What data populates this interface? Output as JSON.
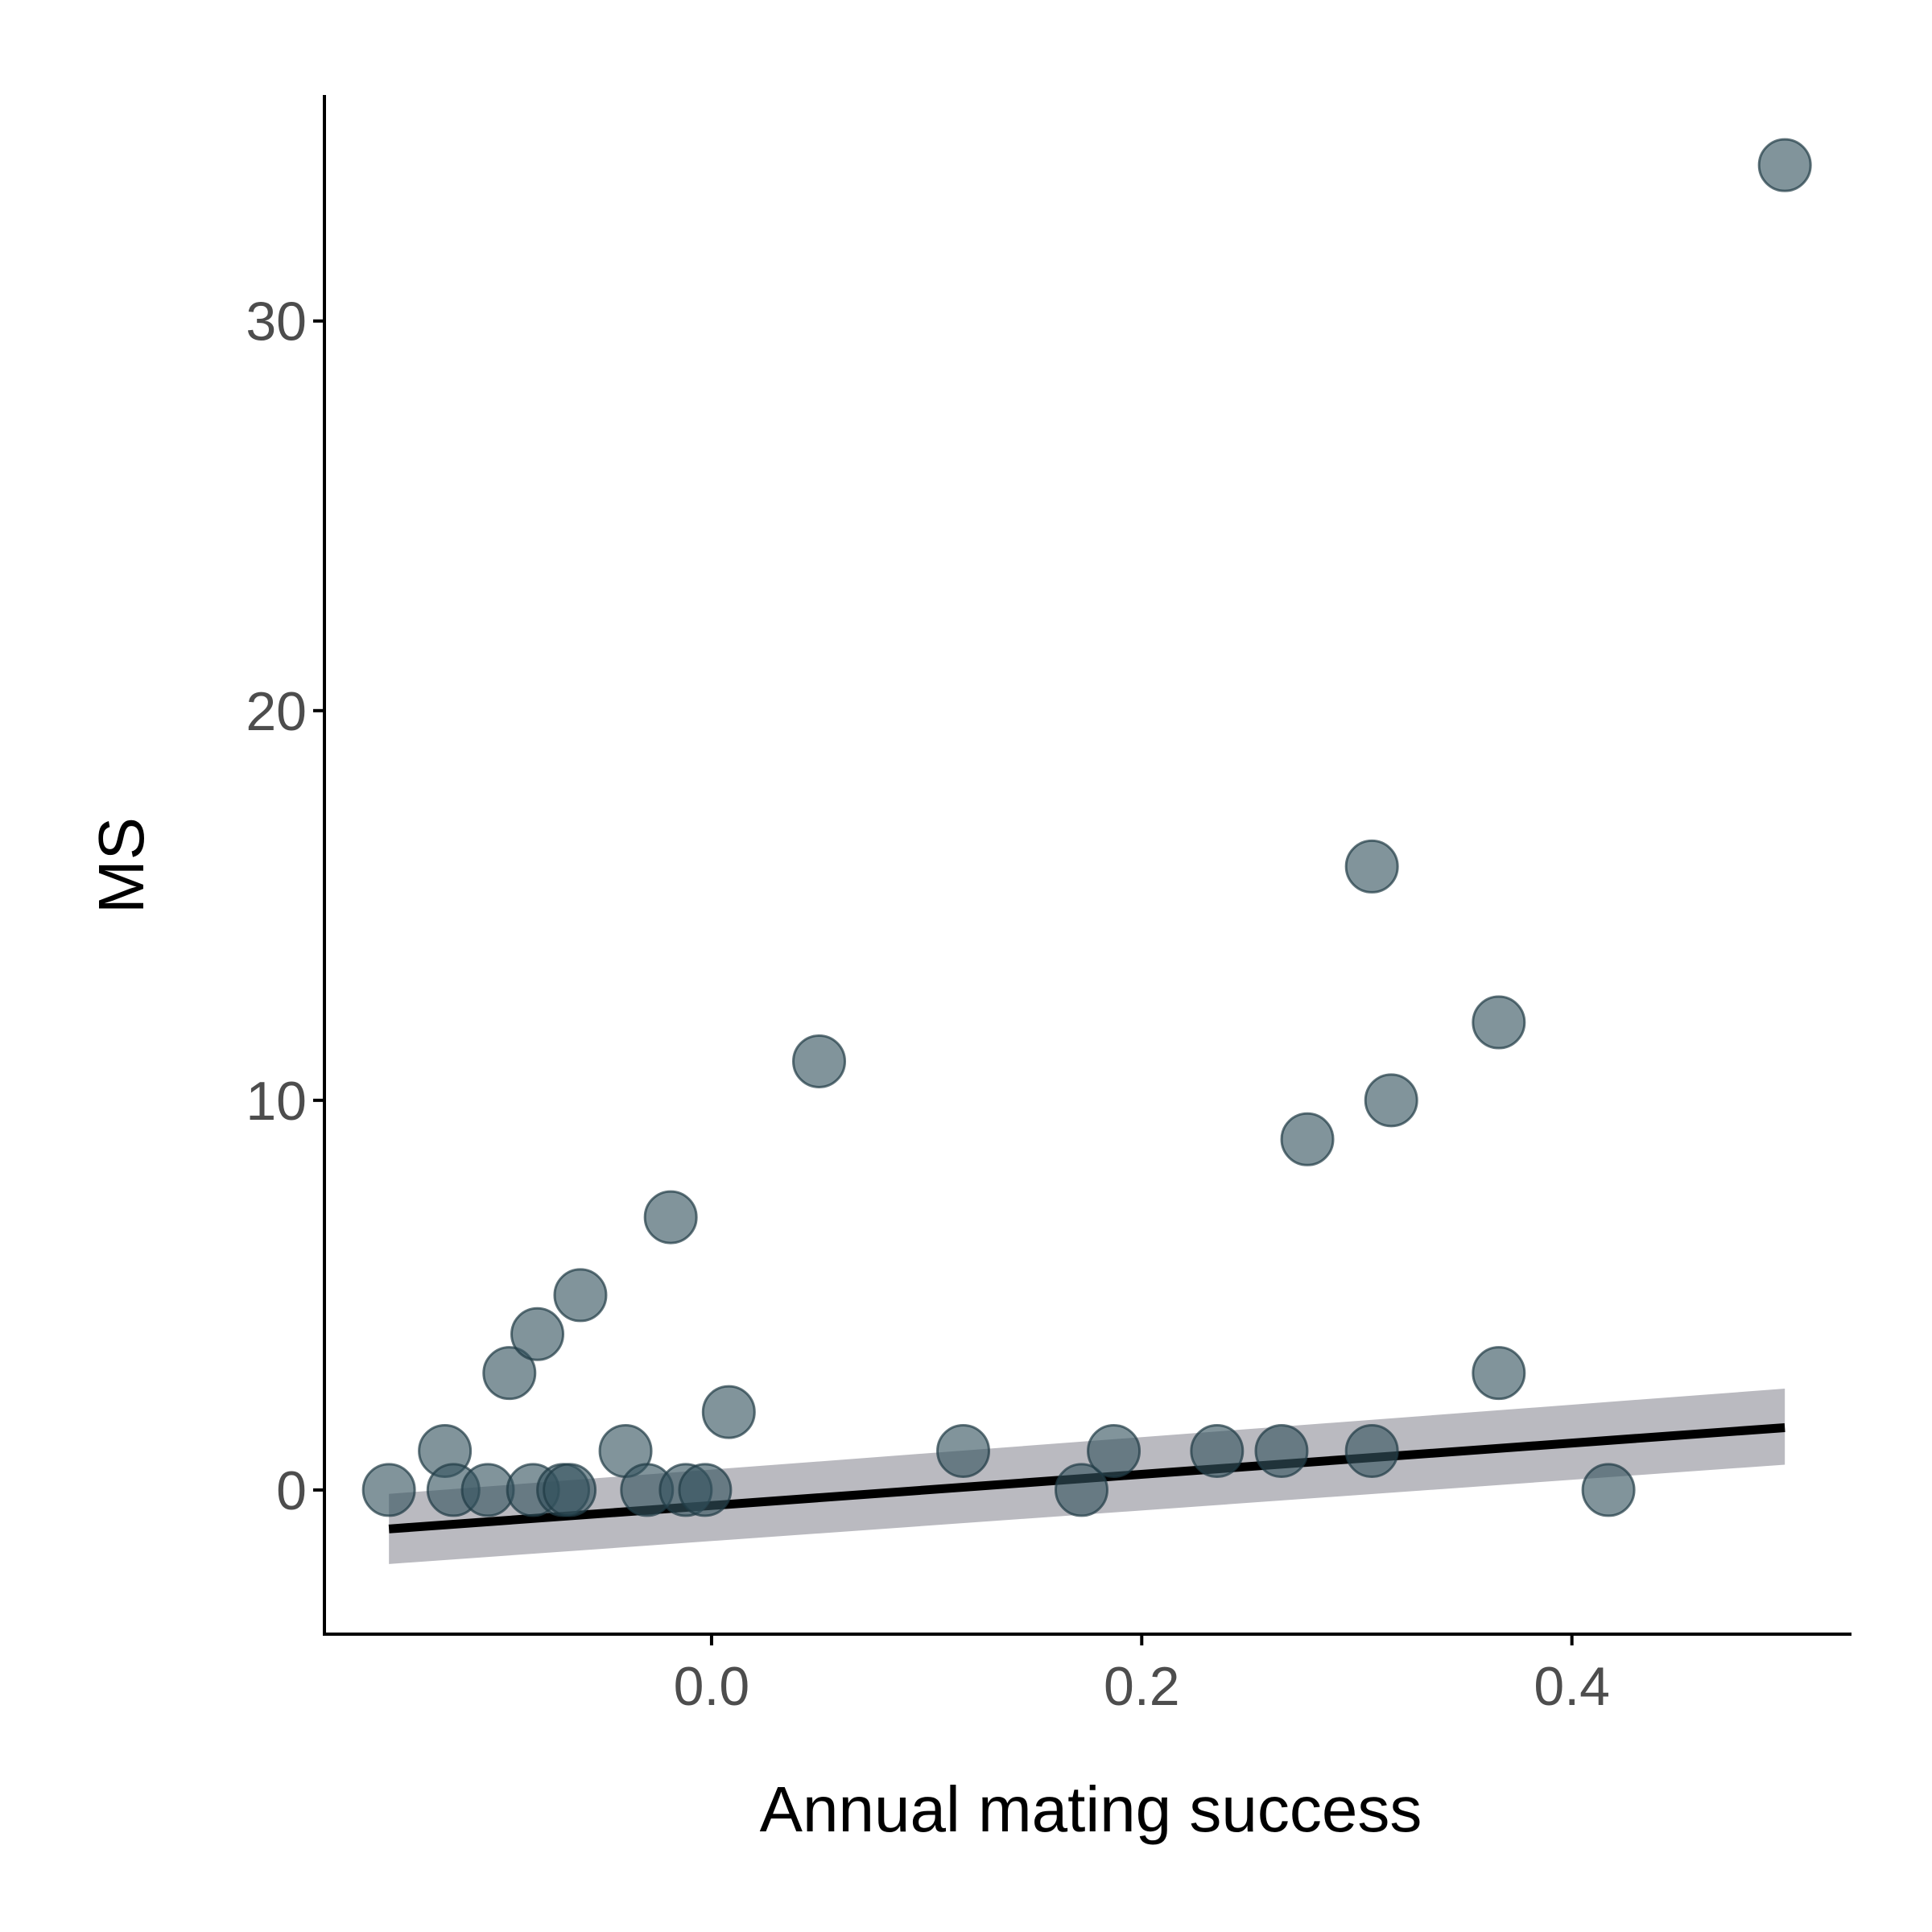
{
  "chart_data": {
    "type": "scatter",
    "xlabel": "Annual mating success",
    "ylabel": "MS",
    "xlim": [
      -0.18,
      0.53
    ],
    "ylim": [
      -3.7,
      35.8
    ],
    "x_ticks": [
      0.0,
      0.2,
      0.4
    ],
    "x_tick_labels": [
      "0.0",
      "0.2",
      "0.4"
    ],
    "y_ticks": [
      0,
      10,
      20,
      30
    ],
    "y_tick_labels": [
      "0",
      "10",
      "20",
      "30"
    ],
    "grid": false,
    "legend": "none",
    "points": [
      {
        "x": -0.15,
        "y": 0
      },
      {
        "x": -0.124,
        "y": 1
      },
      {
        "x": -0.12,
        "y": 0
      },
      {
        "x": -0.104,
        "y": 0
      },
      {
        "x": -0.094,
        "y": 3
      },
      {
        "x": -0.083,
        "y": 0
      },
      {
        "x": -0.081,
        "y": 4
      },
      {
        "x": -0.069,
        "y": 0
      },
      {
        "x": -0.066,
        "y": 0
      },
      {
        "x": -0.061,
        "y": 5
      },
      {
        "x": -0.04,
        "y": 1
      },
      {
        "x": -0.03,
        "y": 0
      },
      {
        "x": -0.019,
        "y": 7
      },
      {
        "x": -0.012,
        "y": 0
      },
      {
        "x": -0.003,
        "y": 0
      },
      {
        "x": 0.008,
        "y": 2
      },
      {
        "x": 0.05,
        "y": 11
      },
      {
        "x": 0.117,
        "y": 1
      },
      {
        "x": 0.172,
        "y": 0
      },
      {
        "x": 0.187,
        "y": 1
      },
      {
        "x": 0.235,
        "y": 1
      },
      {
        "x": 0.265,
        "y": 1
      },
      {
        "x": 0.277,
        "y": 9
      },
      {
        "x": 0.307,
        "y": 16
      },
      {
        "x": 0.307,
        "y": 1
      },
      {
        "x": 0.316,
        "y": 10
      },
      {
        "x": 0.366,
        "y": 12
      },
      {
        "x": 0.366,
        "y": 3
      },
      {
        "x": 0.417,
        "y": 0
      },
      {
        "x": 0.499,
        "y": 34
      }
    ],
    "fit_line": {
      "x": [
        -0.15,
        0.499
      ],
      "y": [
        -1.0,
        1.6
      ]
    },
    "confidence_band": {
      "x": [
        -0.15,
        0.499
      ],
      "lower": [
        -1.9,
        0.65
      ],
      "upper": [
        -0.1,
        2.6
      ]
    },
    "colors": {
      "point_fill": "#34525e",
      "point_stroke": "#1f3a45",
      "line": "#000000",
      "band": "#8c8c96",
      "axis": "#000000",
      "tick_text": "#4d4d4d"
    }
  }
}
